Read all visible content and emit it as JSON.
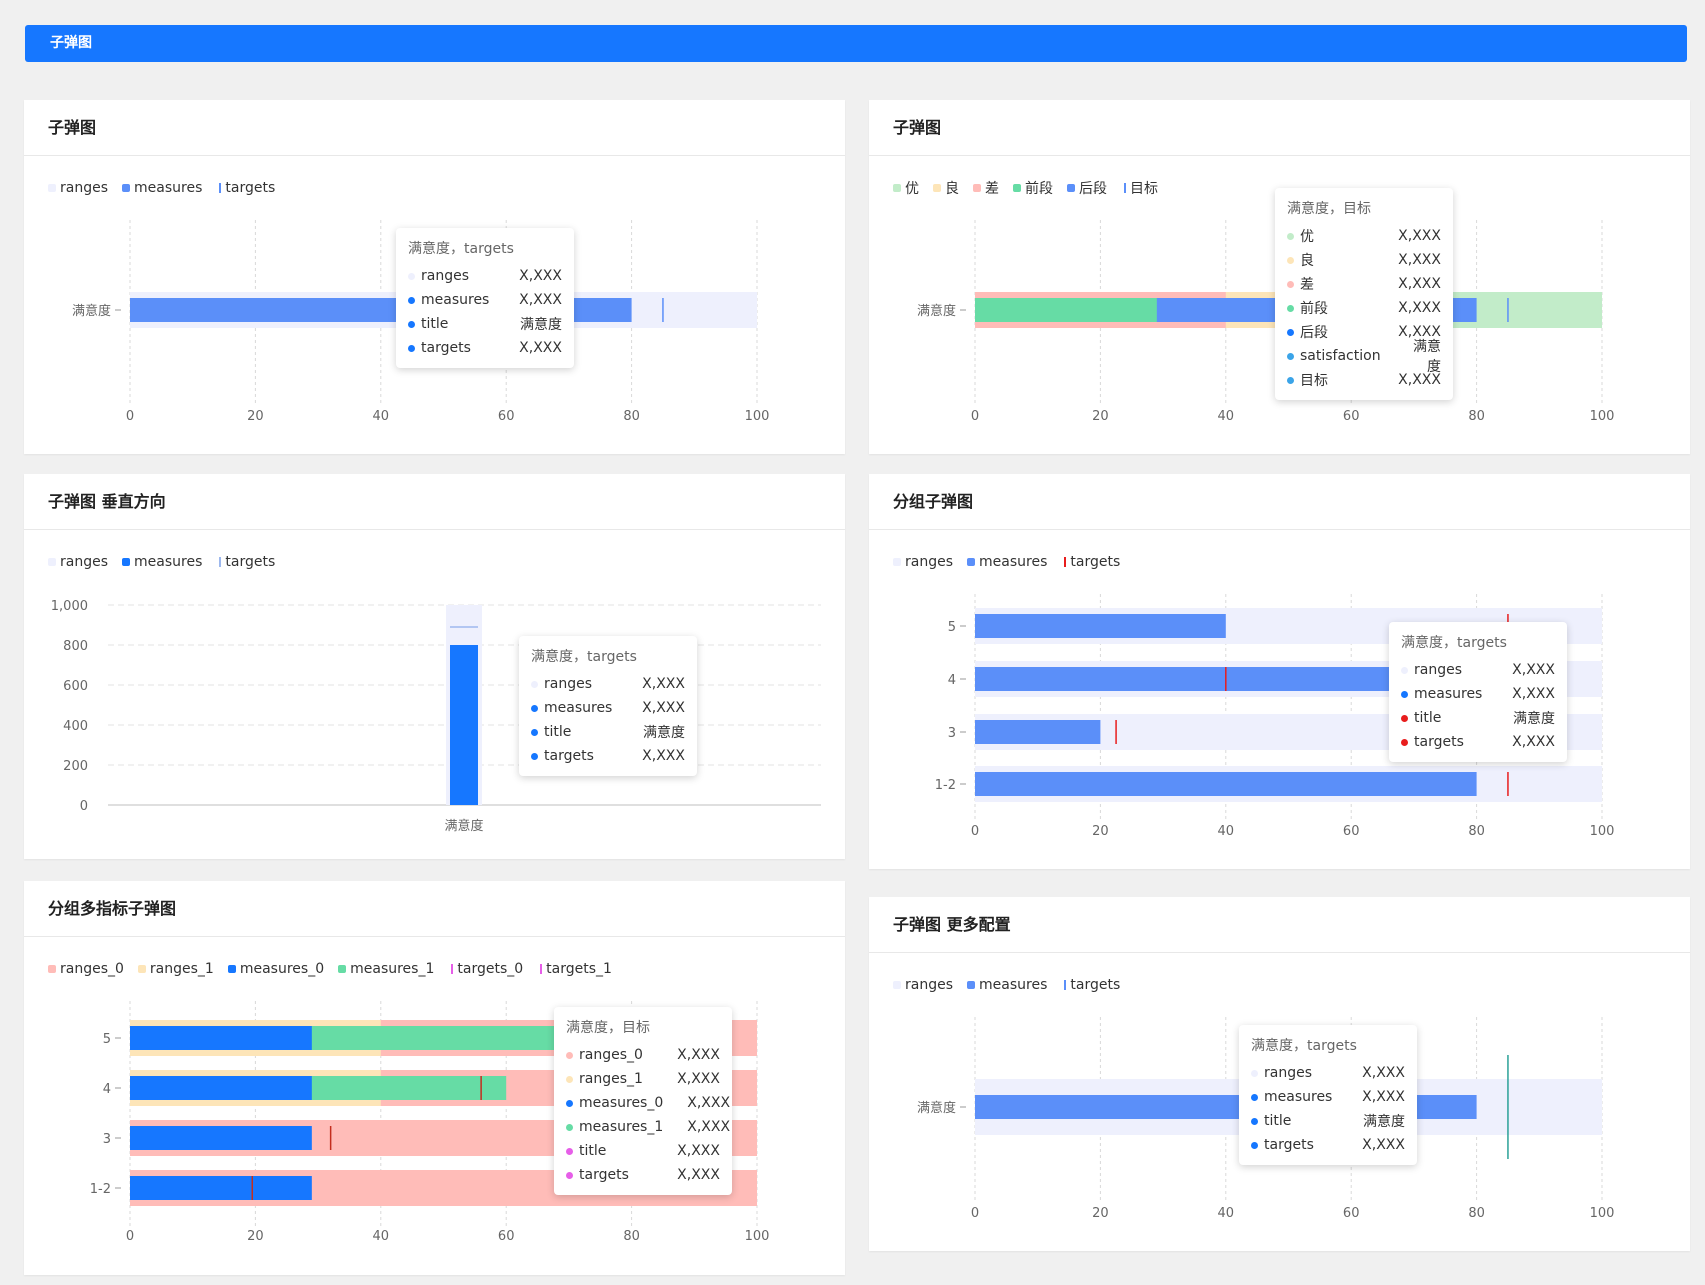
{
  "topbar": {
    "title": "子弹图"
  },
  "panels": [
    {
      "id": "p1",
      "title": "子弹图",
      "legend": [
        {
          "name": "ranges",
          "color": "#eef0fd",
          "kind": "swatch"
        },
        {
          "name": "measures",
          "color": "#5b8ff9",
          "kind": "swatch"
        },
        {
          "name": "targets",
          "color": "#5b8ff9",
          "kind": "line"
        }
      ],
      "tooltip": {
        "title": "满意度，targets",
        "rows": [
          {
            "name": "ranges",
            "value": "X,XXX",
            "color": "#eef0fd"
          },
          {
            "name": "measures",
            "value": "X,XXX",
            "color": "#1677ff"
          },
          {
            "name": "title",
            "value": "满意度",
            "color": "#1677ff"
          },
          {
            "name": "targets",
            "value": "X,XXX",
            "color": "#1677ff"
          }
        ]
      }
    },
    {
      "id": "p2",
      "title": "子弹图",
      "legend": [
        {
          "name": "优",
          "color": "#c2ecc9",
          "kind": "swatch"
        },
        {
          "name": "良",
          "color": "#fde5b8",
          "kind": "swatch"
        },
        {
          "name": "差",
          "color": "#ffbcb8",
          "kind": "swatch"
        },
        {
          "name": "前段",
          "color": "#66dca5",
          "kind": "swatch"
        },
        {
          "name": "后段",
          "color": "#5b8ff9",
          "kind": "swatch"
        },
        {
          "name": "目标",
          "color": "#5b8ff9",
          "kind": "line"
        }
      ],
      "tooltip": {
        "title": "满意度，目标",
        "rows": [
          {
            "name": "优",
            "value": "X,XXX",
            "color": "#c2ecc9"
          },
          {
            "name": "良",
            "value": "X,XXX",
            "color": "#fde5b8"
          },
          {
            "name": "差",
            "value": "X,XXX",
            "color": "#ffbcb8"
          },
          {
            "name": "前段",
            "value": "X,XXX",
            "color": "#66dca5"
          },
          {
            "name": "后段",
            "value": "X,XXX",
            "color": "#1677ff"
          },
          {
            "name": "satisfaction",
            "value": "满意度",
            "color": "#3ba4e8"
          },
          {
            "name": "目标",
            "value": "X,XXX",
            "color": "#3ba4e8"
          }
        ]
      }
    },
    {
      "id": "p3",
      "title": "子弹图 垂直方向",
      "legend": [
        {
          "name": "ranges",
          "color": "#eef0fd",
          "kind": "swatch"
        },
        {
          "name": "measures",
          "color": "#1677ff",
          "kind": "swatch"
        },
        {
          "name": "targets",
          "color": "#9db8ee",
          "kind": "line"
        }
      ],
      "tooltip": {
        "title": "满意度，targets",
        "rows": [
          {
            "name": "ranges",
            "value": "X,XXX",
            "color": "#eef0fd"
          },
          {
            "name": "measures",
            "value": "X,XXX",
            "color": "#1677ff"
          },
          {
            "name": "title",
            "value": "满意度",
            "color": "#1677ff"
          },
          {
            "name": "targets",
            "value": "X,XXX",
            "color": "#1677ff"
          }
        ]
      }
    },
    {
      "id": "p4",
      "title": "分组子弹图",
      "legend": [
        {
          "name": "ranges",
          "color": "#eef0fd",
          "kind": "swatch"
        },
        {
          "name": "measures",
          "color": "#5b8ff9",
          "kind": "swatch"
        },
        {
          "name": "targets",
          "color": "#e81d1d",
          "kind": "line"
        }
      ],
      "tooltip": {
        "title": "满意度，targets",
        "rows": [
          {
            "name": "ranges",
            "value": "X,XXX",
            "color": "#eef0fd"
          },
          {
            "name": "measures",
            "value": "X,XXX",
            "color": "#1677ff"
          },
          {
            "name": "title",
            "value": "满意度",
            "color": "#e81d1d"
          },
          {
            "name": "targets",
            "value": "X,XXX",
            "color": "#e81d1d"
          }
        ]
      }
    },
    {
      "id": "p5",
      "title": "分组多指标子弹图",
      "legend": [
        {
          "name": "ranges_0",
          "color": "#ffbcb8",
          "kind": "swatch"
        },
        {
          "name": "ranges_1",
          "color": "#fde5b8",
          "kind": "swatch"
        },
        {
          "name": "measures_0",
          "color": "#1677ff",
          "kind": "swatch"
        },
        {
          "name": "measures_1",
          "color": "#66dca5",
          "kind": "swatch"
        },
        {
          "name": "targets_0",
          "color": "#e65ee8",
          "kind": "line"
        },
        {
          "name": "targets_1",
          "color": "#e65ee8",
          "kind": "line"
        }
      ],
      "tooltip": {
        "title": "满意度，目标",
        "rows": [
          {
            "name": "ranges_0",
            "value": "X,XXX",
            "color": "#ffbcb8"
          },
          {
            "name": "ranges_1",
            "value": "X,XXX",
            "color": "#fde5b8"
          },
          {
            "name": "measures_0",
            "value": "X,XXX",
            "color": "#1677ff"
          },
          {
            "name": "measures_1",
            "value": "X,XXX",
            "color": "#66dca5"
          },
          {
            "name": "title",
            "value": "X,XXX",
            "color": "#e65ee8"
          },
          {
            "name": "targets",
            "value": "X,XXX",
            "color": "#e65ee8"
          }
        ]
      }
    },
    {
      "id": "p6",
      "title": "子弹图 更多配置",
      "legend": [
        {
          "name": "ranges",
          "color": "#eef0fd",
          "kind": "swatch"
        },
        {
          "name": "measures",
          "color": "#5b8ff9",
          "kind": "swatch"
        },
        {
          "name": "targets",
          "color": "#5b8ff9",
          "kind": "line"
        }
      ],
      "tooltip": {
        "title": "满意度，targets",
        "rows": [
          {
            "name": "ranges",
            "value": "X,XXX",
            "color": "#eef0fd"
          },
          {
            "name": "measures",
            "value": "X,XXX",
            "color": "#1677ff"
          },
          {
            "name": "title",
            "value": "满意度",
            "color": "#1677ff"
          },
          {
            "name": "targets",
            "value": "X,XXX",
            "color": "#1677ff"
          }
        ]
      }
    }
  ],
  "chart_data": [
    {
      "type": "bullet",
      "orientation": "horizontal",
      "categories": [
        "满意度"
      ],
      "xlim": [
        0,
        100
      ],
      "xticks": [
        "0",
        "20",
        "40",
        "60",
        "80",
        "100"
      ],
      "items": [
        {
          "title": "满意度",
          "ranges": [
            100
          ],
          "measures": [
            80
          ],
          "targets": [
            85
          ]
        }
      ],
      "colors": {
        "ranges": [
          "#eef0fd"
        ],
        "measures": [
          "#5b8ff9"
        ],
        "target": "#5b8ff9"
      }
    },
    {
      "type": "bullet",
      "orientation": "horizontal",
      "categories": [
        "满意度"
      ],
      "xlim": [
        0,
        100
      ],
      "xticks": [
        "0",
        "20",
        "40",
        "60",
        "80",
        "100"
      ],
      "items": [
        {
          "title": "满意度",
          "ranges": [
            40,
            70,
            100
          ],
          "measures": [
            29,
            80
          ],
          "targets": [
            85
          ]
        }
      ],
      "range_names": [
        "差",
        "良",
        "优"
      ],
      "measure_names": [
        "前段",
        "后段"
      ],
      "colors": {
        "ranges": [
          "#ffbcb8",
          "#fde5b8",
          "#c2ecc9"
        ],
        "measures": [
          "#66dca5",
          "#5b8ff9"
        ],
        "target": "#5b8ff9"
      }
    },
    {
      "type": "bullet",
      "orientation": "vertical",
      "categories": [
        "满意度"
      ],
      "ylim": [
        0,
        1000
      ],
      "yticks": [
        "0",
        "200",
        "400",
        "600",
        "800",
        "1,000"
      ],
      "items": [
        {
          "title": "满意度",
          "ranges": [
            1000
          ],
          "measures": [
            800
          ],
          "targets": [
            890
          ]
        }
      ],
      "colors": {
        "ranges": [
          "#eef0fd"
        ],
        "measures": [
          "#1677ff"
        ],
        "target": "#9db8ee"
      }
    },
    {
      "type": "bullet",
      "orientation": "horizontal",
      "categories": [
        "5",
        "4",
        "3",
        "1-2"
      ],
      "xlim": [
        0,
        100
      ],
      "xticks": [
        "0",
        "20",
        "40",
        "60",
        "80",
        "100"
      ],
      "items": [
        {
          "title": "5",
          "ranges": [
            100
          ],
          "measures": [
            40
          ],
          "targets": [
            85
          ]
        },
        {
          "title": "4",
          "ranges": [
            100
          ],
          "measures": [
            80
          ],
          "targets": [
            40
          ]
        },
        {
          "title": "3",
          "ranges": [
            100
          ],
          "measures": [
            20
          ],
          "targets": [
            22.5
          ]
        },
        {
          "title": "1-2",
          "ranges": [
            100
          ],
          "measures": [
            80
          ],
          "targets": [
            85
          ]
        }
      ],
      "colors": {
        "ranges": [
          "#eef0fd"
        ],
        "measures": [
          "#5b8ff9"
        ],
        "target": "#e81d1d"
      }
    },
    {
      "type": "bullet",
      "orientation": "horizontal",
      "categories": [
        "5",
        "4",
        "3",
        "1-2"
      ],
      "xlim": [
        0,
        100
      ],
      "xticks": [
        "0",
        "20",
        "40",
        "60",
        "80",
        "100"
      ],
      "items": [
        {
          "title": "5",
          "ranges": [
            40,
            100
          ],
          "measures": [
            29,
            73
          ],
          "targets": []
        },
        {
          "title": "4",
          "ranges": [
            40,
            100
          ],
          "measures": [
            29,
            60
          ],
          "targets": [
            56
          ]
        },
        {
          "title": "3",
          "ranges": [
            0,
            100
          ],
          "measures": [
            29
          ],
          "targets": [
            32
          ]
        },
        {
          "title": "1-2",
          "ranges": [
            0,
            100
          ],
          "measures": [
            29
          ],
          "targets": [
            19.5
          ]
        }
      ],
      "colors": {
        "ranges": [
          "#fde5b8",
          "#ffbcb8"
        ],
        "measures": [
          "#1677ff",
          "#66dca5"
        ],
        "target": "#c42e1e"
      }
    },
    {
      "type": "bullet",
      "orientation": "horizontal",
      "categories": [
        "满意度"
      ],
      "xlim": [
        0,
        100
      ],
      "xticks": [
        "0",
        "20",
        "40",
        "60",
        "80",
        "100"
      ],
      "items": [
        {
          "title": "满意度",
          "ranges": [
            100
          ],
          "measures": [
            80
          ],
          "targets": [
            85
          ]
        }
      ],
      "colors": {
        "ranges": [
          "#eef0fd"
        ],
        "measures": [
          "#5b8ff9"
        ],
        "target": "#2aa198"
      }
    }
  ]
}
